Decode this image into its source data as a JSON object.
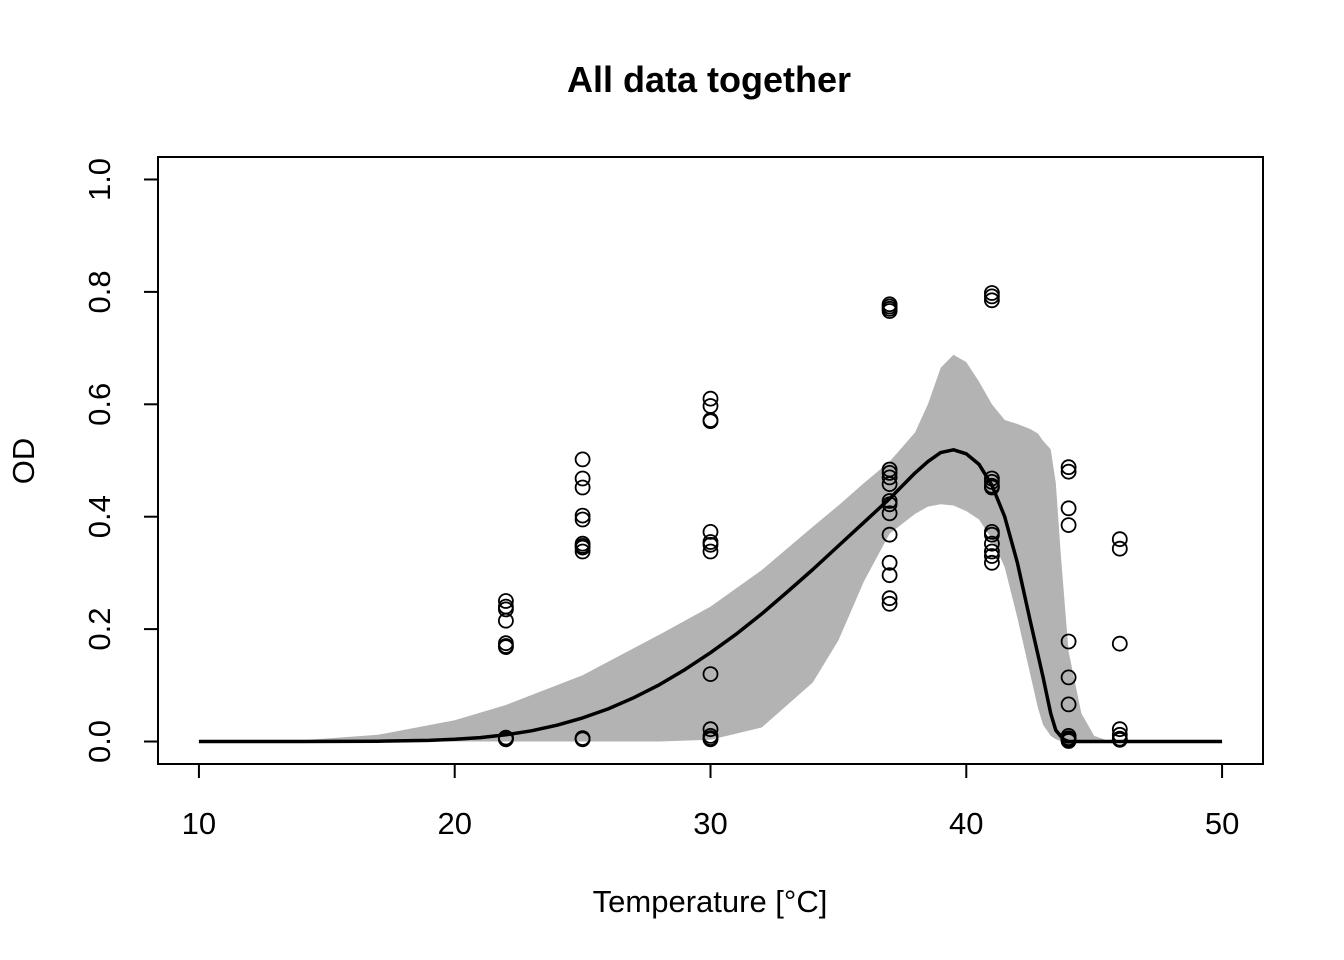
{
  "chart_data": {
    "type": "scatter",
    "title": "All data together",
    "xlabel": "Temperature [°C]",
    "ylabel": "OD",
    "xlim": [
      8.4,
      51.6
    ],
    "ylim": [
      -0.04,
      1.04
    ],
    "xticks": [
      "10",
      "20",
      "30",
      "40",
      "50"
    ],
    "yticks": [
      "0.0",
      "0.2",
      "0.4",
      "0.6",
      "0.8",
      "1.0"
    ],
    "grid": false,
    "legend": "none",
    "colors": {
      "points": "#000000",
      "curve": "#000000",
      "band": "#b3b3b3"
    },
    "observations": [
      {
        "x": 22,
        "y": [
          0.25,
          0.235,
          0.24,
          0.215,
          0.175,
          0.17,
          0.168,
          0.007,
          0.005,
          0.004,
          0.006
        ]
      },
      {
        "x": 25,
        "y": [
          0.502,
          0.468,
          0.452,
          0.402,
          0.395,
          0.352,
          0.348,
          0.345,
          0.338,
          0.006,
          0.004,
          0.005
        ]
      },
      {
        "x": 30,
        "y": [
          0.61,
          0.597,
          0.572,
          0.57,
          0.373,
          0.355,
          0.35,
          0.338,
          0.12,
          0.022,
          0.01,
          0.006,
          0.004
        ]
      },
      {
        "x": 37,
        "y": [
          0.778,
          0.774,
          0.77,
          0.766,
          0.484,
          0.478,
          0.47,
          0.458,
          0.428,
          0.422,
          0.406,
          0.368,
          0.318,
          0.296,
          0.255,
          0.245
        ]
      },
      {
        "x": 41,
        "y": [
          0.798,
          0.792,
          0.785,
          0.468,
          0.462,
          0.455,
          0.452,
          0.373,
          0.368,
          0.352,
          0.338,
          0.33,
          0.318
        ]
      },
      {
        "x": 44,
        "y": [
          0.488,
          0.48,
          0.415,
          0.385,
          0.178,
          0.114,
          0.066,
          0.01,
          0.006,
          0.004,
          0.002,
          0.001
        ]
      },
      {
        "x": 46,
        "y": [
          0.36,
          0.343,
          0.174,
          0.022,
          0.012,
          0.005,
          0.003
        ]
      }
    ],
    "fitted_curve": {
      "x": [
        10,
        14,
        17,
        19,
        20,
        21,
        22,
        23,
        24,
        25,
        26,
        27,
        28,
        29,
        30,
        31,
        32,
        33,
        34,
        35,
        36,
        37,
        38,
        38.5,
        39,
        39.5,
        40,
        40.5,
        41,
        41.5,
        42,
        42.5,
        43,
        43.3,
        43.5,
        43.8,
        44,
        45,
        50
      ],
      "y": [
        0,
        0,
        0.0005,
        0.002,
        0.004,
        0.007,
        0.012,
        0.019,
        0.029,
        0.042,
        0.058,
        0.078,
        0.101,
        0.128,
        0.158,
        0.191,
        0.227,
        0.266,
        0.306,
        0.348,
        0.39,
        0.432,
        0.478,
        0.498,
        0.514,
        0.519,
        0.512,
        0.493,
        0.456,
        0.4,
        0.318,
        0.215,
        0.115,
        0.05,
        0.02,
        0.004,
        0.0,
        0.0,
        0.0
      ]
    },
    "confidence_band": {
      "x": [
        10,
        14,
        17,
        20,
        22,
        25,
        28,
        30,
        32,
        34,
        35,
        36,
        37,
        38,
        38.5,
        39,
        39.5,
        40,
        40.5,
        41,
        41.5,
        42,
        42.5,
        42.8,
        43,
        43.3,
        43.5,
        43.7,
        44,
        44.5,
        45,
        45.5,
        50
      ],
      "lower": [
        0,
        0,
        0,
        0,
        0,
        0,
        0,
        0.003,
        0.025,
        0.105,
        0.18,
        0.285,
        0.37,
        0.405,
        0.418,
        0.422,
        0.42,
        0.41,
        0.395,
        0.36,
        0.31,
        0.22,
        0.12,
        0.06,
        0.03,
        0.01,
        0.004,
        0.001,
        0,
        0,
        0,
        0,
        0
      ],
      "upper": [
        0,
        0.002,
        0.012,
        0.038,
        0.065,
        0.118,
        0.19,
        0.24,
        0.305,
        0.382,
        0.42,
        0.46,
        0.498,
        0.55,
        0.6,
        0.665,
        0.688,
        0.675,
        0.64,
        0.6,
        0.572,
        0.565,
        0.556,
        0.548,
        0.535,
        0.52,
        0.46,
        0.33,
        0.16,
        0.05,
        0.01,
        0.002,
        0
      ]
    }
  }
}
